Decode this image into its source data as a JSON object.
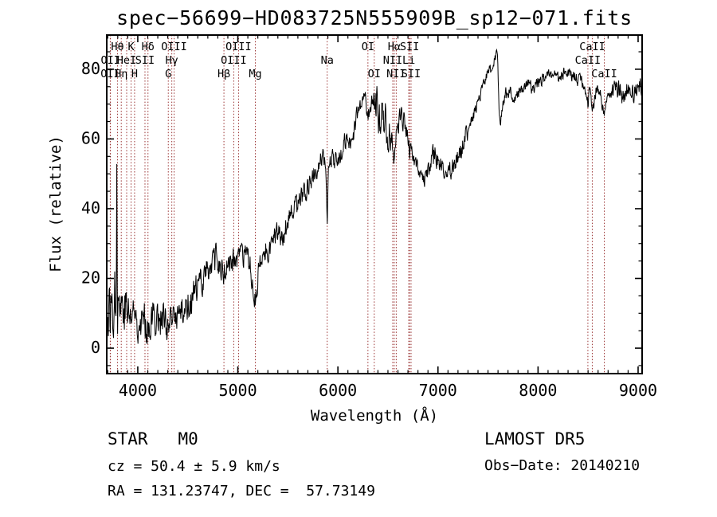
{
  "page": {
    "background": "#ffffff"
  },
  "chart_data": {
    "type": "line",
    "title": "spec−56699−HD083725N555909B_sp12−071.fits",
    "xlabel": "Wavelength (Å)",
    "ylabel": "Flux (relative)",
    "xlim": [
      3690,
      9040
    ],
    "ylim": [
      -7.3,
      89.8
    ],
    "x_ticks": [
      4000,
      5000,
      6000,
      7000,
      8000,
      9000
    ],
    "x_minor_step": 100,
    "y_ticks": [
      0,
      20,
      40,
      60,
      80
    ],
    "y_minor_step": 5,
    "grid": false,
    "legend": "none",
    "line_color": "#000000",
    "frame_color": "#000000",
    "spectral_line_color": "#9a3333",
    "noise_seed": 77,
    "spectral_lines": [
      {
        "label": "OII",
        "wl": 3725,
        "row": 3
      },
      {
        "label": "OII",
        "wl": 3727,
        "row": 2
      },
      {
        "label": "Hθ",
        "wl": 3798,
        "row": 1
      },
      {
        "label": "Hη",
        "wl": 3835,
        "row": 3
      },
      {
        "label": "HeI",
        "wl": 3889,
        "row": 2
      },
      {
        "label": "K",
        "wl": 3933,
        "row": 1
      },
      {
        "label": "H",
        "wl": 3968,
        "row": 3
      },
      {
        "label": "SII",
        "wl": 4072,
        "row": 2
      },
      {
        "label": "Hδ",
        "wl": 4102,
        "row": 1
      },
      {
        "label": "G",
        "wl": 4305,
        "row": 3
      },
      {
        "label": "Hγ",
        "wl": 4340,
        "row": 2
      },
      {
        "label": "OIII",
        "wl": 4363,
        "row": 1
      },
      {
        "label": "Hβ",
        "wl": 4861,
        "row": 3
      },
      {
        "label": "OIII",
        "wl": 4959,
        "row": 2
      },
      {
        "label": "OIII",
        "wl": 5007,
        "row": 1
      },
      {
        "label": "Mg",
        "wl": 5175,
        "row": 3
      },
      {
        "label": "Na",
        "wl": 5893,
        "row": 2
      },
      {
        "label": "OI",
        "wl": 6300,
        "row": 1
      },
      {
        "label": "OI",
        "wl": 6363,
        "row": 3
      },
      {
        "label": "NII",
        "wl": 6548,
        "row": 2
      },
      {
        "label": "Hα",
        "wl": 6563,
        "row": 1
      },
      {
        "label": "NII",
        "wl": 6583,
        "row": 3
      },
      {
        "label": "Li",
        "wl": 6708,
        "row": 2
      },
      {
        "label": "SII",
        "wl": 6716,
        "row": 1
      },
      {
        "label": "SII",
        "wl": 6731,
        "row": 3
      },
      {
        "label": "CaII",
        "wl": 8498,
        "row": 2
      },
      {
        "label": "CaII",
        "wl": 8542,
        "row": 1
      },
      {
        "label": "CaII",
        "wl": 8662,
        "row": 3
      }
    ],
    "spectrum_envelope": [
      [
        3690,
        8,
        9
      ],
      [
        3740,
        12,
        10
      ],
      [
        3784,
        16,
        11
      ],
      [
        3790,
        56,
        4
      ],
      [
        3796,
        14,
        9
      ],
      [
        3840,
        13,
        9
      ],
      [
        3880,
        12,
        8
      ],
      [
        3920,
        9,
        7
      ],
      [
        3960,
        10,
        7
      ],
      [
        4000,
        9,
        7
      ],
      [
        4050,
        8,
        6
      ],
      [
        4100,
        7,
        6
      ],
      [
        4150,
        9,
        6
      ],
      [
        4200,
        9,
        6
      ],
      [
        4260,
        8,
        6
      ],
      [
        4310,
        5,
        5
      ],
      [
        4360,
        9,
        5
      ],
      [
        4420,
        10,
        5
      ],
      [
        4480,
        12,
        5
      ],
      [
        4540,
        14,
        5
      ],
      [
        4600,
        17,
        5
      ],
      [
        4660,
        21,
        5
      ],
      [
        4720,
        24,
        5
      ],
      [
        4780,
        25,
        5
      ],
      [
        4830,
        23,
        4
      ],
      [
        4861,
        21,
        4
      ],
      [
        4900,
        24,
        4
      ],
      [
        4960,
        25,
        4
      ],
      [
        5020,
        26,
        4
      ],
      [
        5080,
        26,
        4
      ],
      [
        5130,
        23,
        4
      ],
      [
        5175,
        14,
        4
      ],
      [
        5210,
        22,
        4
      ],
      [
        5260,
        27,
        4
      ],
      [
        5310,
        29,
        4
      ],
      [
        5360,
        31,
        4
      ],
      [
        5410,
        32,
        4
      ],
      [
        5460,
        34,
        4
      ],
      [
        5510,
        36,
        4
      ],
      [
        5560,
        39,
        4
      ],
      [
        5610,
        42,
        4
      ],
      [
        5660,
        44,
        4
      ],
      [
        5710,
        47,
        3
      ],
      [
        5760,
        50,
        3
      ],
      [
        5810,
        53,
        3
      ],
      [
        5855,
        56,
        3
      ],
      [
        5880,
        52,
        2
      ],
      [
        5893,
        34,
        1
      ],
      [
        5906,
        52,
        2
      ],
      [
        5950,
        55,
        3
      ],
      [
        5990,
        52,
        3
      ],
      [
        6030,
        56,
        3
      ],
      [
        6080,
        60,
        3
      ],
      [
        6130,
        58,
        3
      ],
      [
        6180,
        65,
        3
      ],
      [
        6230,
        70,
        3
      ],
      [
        6270,
        73,
        2
      ],
      [
        6300,
        66,
        3
      ],
      [
        6340,
        72,
        3
      ],
      [
        6380,
        70,
        6
      ],
      [
        6420,
        66,
        7
      ],
      [
        6460,
        66,
        8
      ],
      [
        6500,
        62,
        7
      ],
      [
        6540,
        60,
        6
      ],
      [
        6563,
        55,
        3
      ],
      [
        6580,
        60,
        4
      ],
      [
        6610,
        66,
        4
      ],
      [
        6650,
        66,
        4
      ],
      [
        6680,
        63,
        3
      ],
      [
        6710,
        58,
        3
      ],
      [
        6740,
        55,
        3
      ],
      [
        6780,
        52,
        3
      ],
      [
        6820,
        50,
        2
      ],
      [
        6860,
        48,
        2
      ],
      [
        6900,
        50,
        3
      ],
      [
        6940,
        53,
        4
      ],
      [
        6980,
        56,
        4
      ],
      [
        7020,
        53,
        3
      ],
      [
        7060,
        50,
        3
      ],
      [
        7100,
        50,
        3
      ],
      [
        7140,
        52,
        3
      ],
      [
        7180,
        54,
        3
      ],
      [
        7230,
        57,
        3
      ],
      [
        7280,
        61,
        3
      ],
      [
        7330,
        65,
        3
      ],
      [
        7380,
        69,
        2
      ],
      [
        7430,
        73,
        2
      ],
      [
        7480,
        77,
        2
      ],
      [
        7530,
        80,
        2
      ],
      [
        7570,
        83,
        2
      ],
      [
        7595,
        85,
        1
      ],
      [
        7610,
        67,
        2
      ],
      [
        7625,
        64,
        2
      ],
      [
        7645,
        70,
        2
      ],
      [
        7680,
        73,
        2
      ],
      [
        7720,
        74,
        2
      ],
      [
        7760,
        71,
        2
      ],
      [
        7800,
        73,
        2
      ],
      [
        7850,
        75,
        2
      ],
      [
        7900,
        76,
        2
      ],
      [
        7950,
        74,
        2
      ],
      [
        8000,
        76,
        2
      ],
      [
        8050,
        77,
        2
      ],
      [
        8100,
        78,
        2
      ],
      [
        8150,
        79,
        2
      ],
      [
        8200,
        77,
        2
      ],
      [
        8250,
        79,
        2
      ],
      [
        8300,
        80,
        2
      ],
      [
        8350,
        78,
        2
      ],
      [
        8400,
        77,
        2
      ],
      [
        8450,
        76,
        2
      ],
      [
        8498,
        70,
        2
      ],
      [
        8520,
        75,
        2
      ],
      [
        8542,
        68,
        2
      ],
      [
        8580,
        74,
        2
      ],
      [
        8620,
        73,
        2
      ],
      [
        8662,
        67,
        2
      ],
      [
        8700,
        73,
        2
      ],
      [
        8750,
        75,
        3
      ],
      [
        8800,
        74,
        3
      ],
      [
        8850,
        72,
        3
      ],
      [
        8900,
        75,
        3
      ],
      [
        8950,
        73,
        3
      ],
      [
        9000,
        76,
        3
      ],
      [
        9040,
        75,
        3
      ]
    ]
  },
  "footer": {
    "class_line": "STAR   M0",
    "cz_line": "cz = 50.4 ± 5.9 km/s",
    "radec_line": "RA = 131.23747, DEC =  57.73149",
    "survey": "LAMOST DR5",
    "obs_date_line": "Obs−Date: 20140210"
  }
}
